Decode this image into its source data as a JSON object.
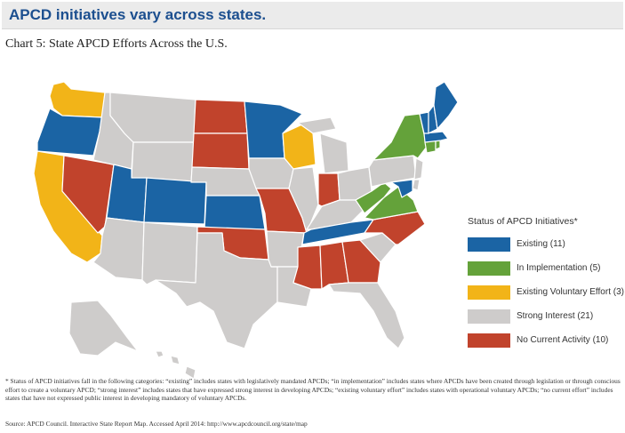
{
  "header": {
    "title": "APCD initiatives vary across states."
  },
  "chart_title": "Chart 5: State APCD Efforts Across the U.S.",
  "colors": {
    "existing": "#1b64a4",
    "in_implementation": "#64a23a",
    "existing_voluntary_effort": "#f2b418",
    "strong_interest": "#cecccb",
    "no_current_activity": "#c1432c"
  },
  "legend": {
    "title": "Status of APCD Initiatives*",
    "items": [
      {
        "label": "Existing (11)",
        "status": "existing"
      },
      {
        "label": "In Implementation (5)",
        "status": "in_implementation"
      },
      {
        "label": "Existing Voluntary Effort (3)",
        "status": "existing_voluntary_effort"
      },
      {
        "label": "Strong Interest (21)",
        "status": "strong_interest"
      },
      {
        "label": "No Current Activity (10)",
        "status": "no_current_activity"
      }
    ]
  },
  "states": {
    "WA": "existing_voluntary_effort",
    "OR": "existing",
    "CA": "existing_voluntary_effort",
    "NV": "no_current_activity",
    "ID": "strong_interest",
    "MT": "strong_interest",
    "WY": "strong_interest",
    "UT": "existing",
    "CO": "existing",
    "AZ": "strong_interest",
    "NM": "strong_interest",
    "ND": "no_current_activity",
    "SD": "no_current_activity",
    "NE": "strong_interest",
    "KS": "existing",
    "OK": "no_current_activity",
    "TX": "strong_interest",
    "MN": "existing",
    "IA": "strong_interest",
    "MO": "no_current_activity",
    "AR": "strong_interest",
    "LA": "strong_interest",
    "WI": "existing_voluntary_effort",
    "IL": "strong_interest",
    "MI": "strong_interest",
    "IN": "no_current_activity",
    "OH": "strong_interest",
    "KY": "strong_interest",
    "TN": "existing",
    "MS": "no_current_activity",
    "AL": "no_current_activity",
    "GA": "no_current_activity",
    "FL": "strong_interest",
    "SC": "strong_interest",
    "NC": "no_current_activity",
    "VA": "in_implementation",
    "WV": "in_implementation",
    "PA": "strong_interest",
    "NY": "in_implementation",
    "VT": "existing",
    "NH": "existing",
    "ME": "existing",
    "MA": "existing",
    "CT": "in_implementation",
    "RI": "in_implementation",
    "NJ": "strong_interest",
    "DE": "strong_interest",
    "MD": "existing",
    "AK": "strong_interest",
    "HI": "strong_interest"
  },
  "footnote": "* Status of APCD initiatives fall in the following categories: “existing” includes states with legislatively mandated APCDs; “in implementation” includes states where APCDs have been created through legislation or through conscious effort to create a voluntary APCD; “strong interest” includes states that have expressed strong interest in developing APCDs; “existing voluntary effort” includes states with operational voluntary APCDs; “no current effort” includes states that have not expressed public interest in developing mandatory of voluntary APCDs.",
  "source": "Source: APCD Council. Interactive State Report Map. Accessed April 2014: http://www.apcdcouncil.org/state/map"
}
